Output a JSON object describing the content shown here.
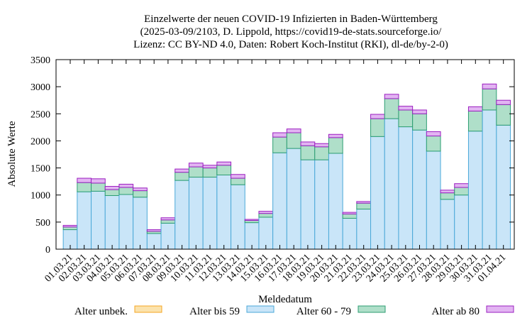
{
  "chart_data": {
    "type": "bar",
    "stacked": true,
    "title_lines": [
      "Einzelwerte der neuen COVID-19 Infizierten in Baden-Württemberg",
      "(2025-03-09/2103, D. Lippold, https://covid19-de-stats.sourceforge.io/",
      "Lizenz: CC BY-ND 4.0, Daten: Robert Koch-Institut (RKI), dl-de/by-2-0)"
    ],
    "xlabel": "Meldedatum",
    "ylabel": "Absolute Werte",
    "ylim": [
      0,
      3500
    ],
    "yticks": [
      0,
      500,
      1000,
      1500,
      2000,
      2500,
      3000,
      3500
    ],
    "grid": false,
    "legend_position": "bottom",
    "categories": [
      "01.03.21",
      "02.03.21",
      "03.03.21",
      "04.03.21",
      "05.03.21",
      "06.03.21",
      "07.03.21",
      "08.03.21",
      "09.03.21",
      "10.03.21",
      "11.03.21",
      "12.03.21",
      "13.03.21",
      "14.03.21",
      "15.03.21",
      "16.03.21",
      "17.03.21",
      "18.03.21",
      "19.03.21",
      "20.03.21",
      "21.03.21",
      "22.03.21",
      "23.03.21",
      "24.03.21",
      "25.03.21",
      "26.03.21",
      "27.03.21",
      "28.03.21",
      "29.03.21",
      "30.03.21",
      "31.03.21",
      "01.04.21"
    ],
    "series": [
      {
        "name": "Alter unbek.",
        "color": "#f5a623",
        "fill": "#fbe3ad",
        "values": [
          0,
          0,
          0,
          0,
          0,
          0,
          0,
          0,
          0,
          0,
          0,
          0,
          0,
          0,
          0,
          0,
          0,
          0,
          0,
          0,
          0,
          0,
          0,
          0,
          0,
          0,
          0,
          0,
          0,
          0,
          0,
          0
        ]
      },
      {
        "name": "Alter bis 59",
        "color": "#4aa8d8",
        "fill": "#c9e5f8",
        "values": [
          360,
          1060,
          1070,
          990,
          1010,
          960,
          290,
          480,
          1270,
          1330,
          1330,
          1370,
          1190,
          490,
          590,
          1780,
          1860,
          1650,
          1650,
          1770,
          570,
          740,
          2080,
          2410,
          2260,
          2200,
          1810,
          920,
          1000,
          2180,
          2570,
          2290
        ]
      },
      {
        "name": "Alter 60 - 79",
        "color": "#2e9e72",
        "fill": "#afdfc9",
        "values": [
          50,
          170,
          150,
          110,
          130,
          120,
          40,
          60,
          150,
          190,
          170,
          180,
          120,
          40,
          70,
          290,
          290,
          260,
          240,
          290,
          80,
          110,
          330,
          370,
          310,
          300,
          280,
          120,
          140,
          370,
          390,
          380
        ]
      },
      {
        "name": "Alter ab 80",
        "color": "#9b1fc0",
        "fill": "#e2b4f2",
        "values": [
          30,
          80,
          80,
          60,
          60,
          50,
          30,
          40,
          60,
          70,
          50,
          60,
          70,
          20,
          40,
          80,
          70,
          70,
          60,
          60,
          30,
          30,
          80,
          80,
          70,
          70,
          80,
          50,
          70,
          80,
          90,
          80
        ]
      }
    ]
  }
}
